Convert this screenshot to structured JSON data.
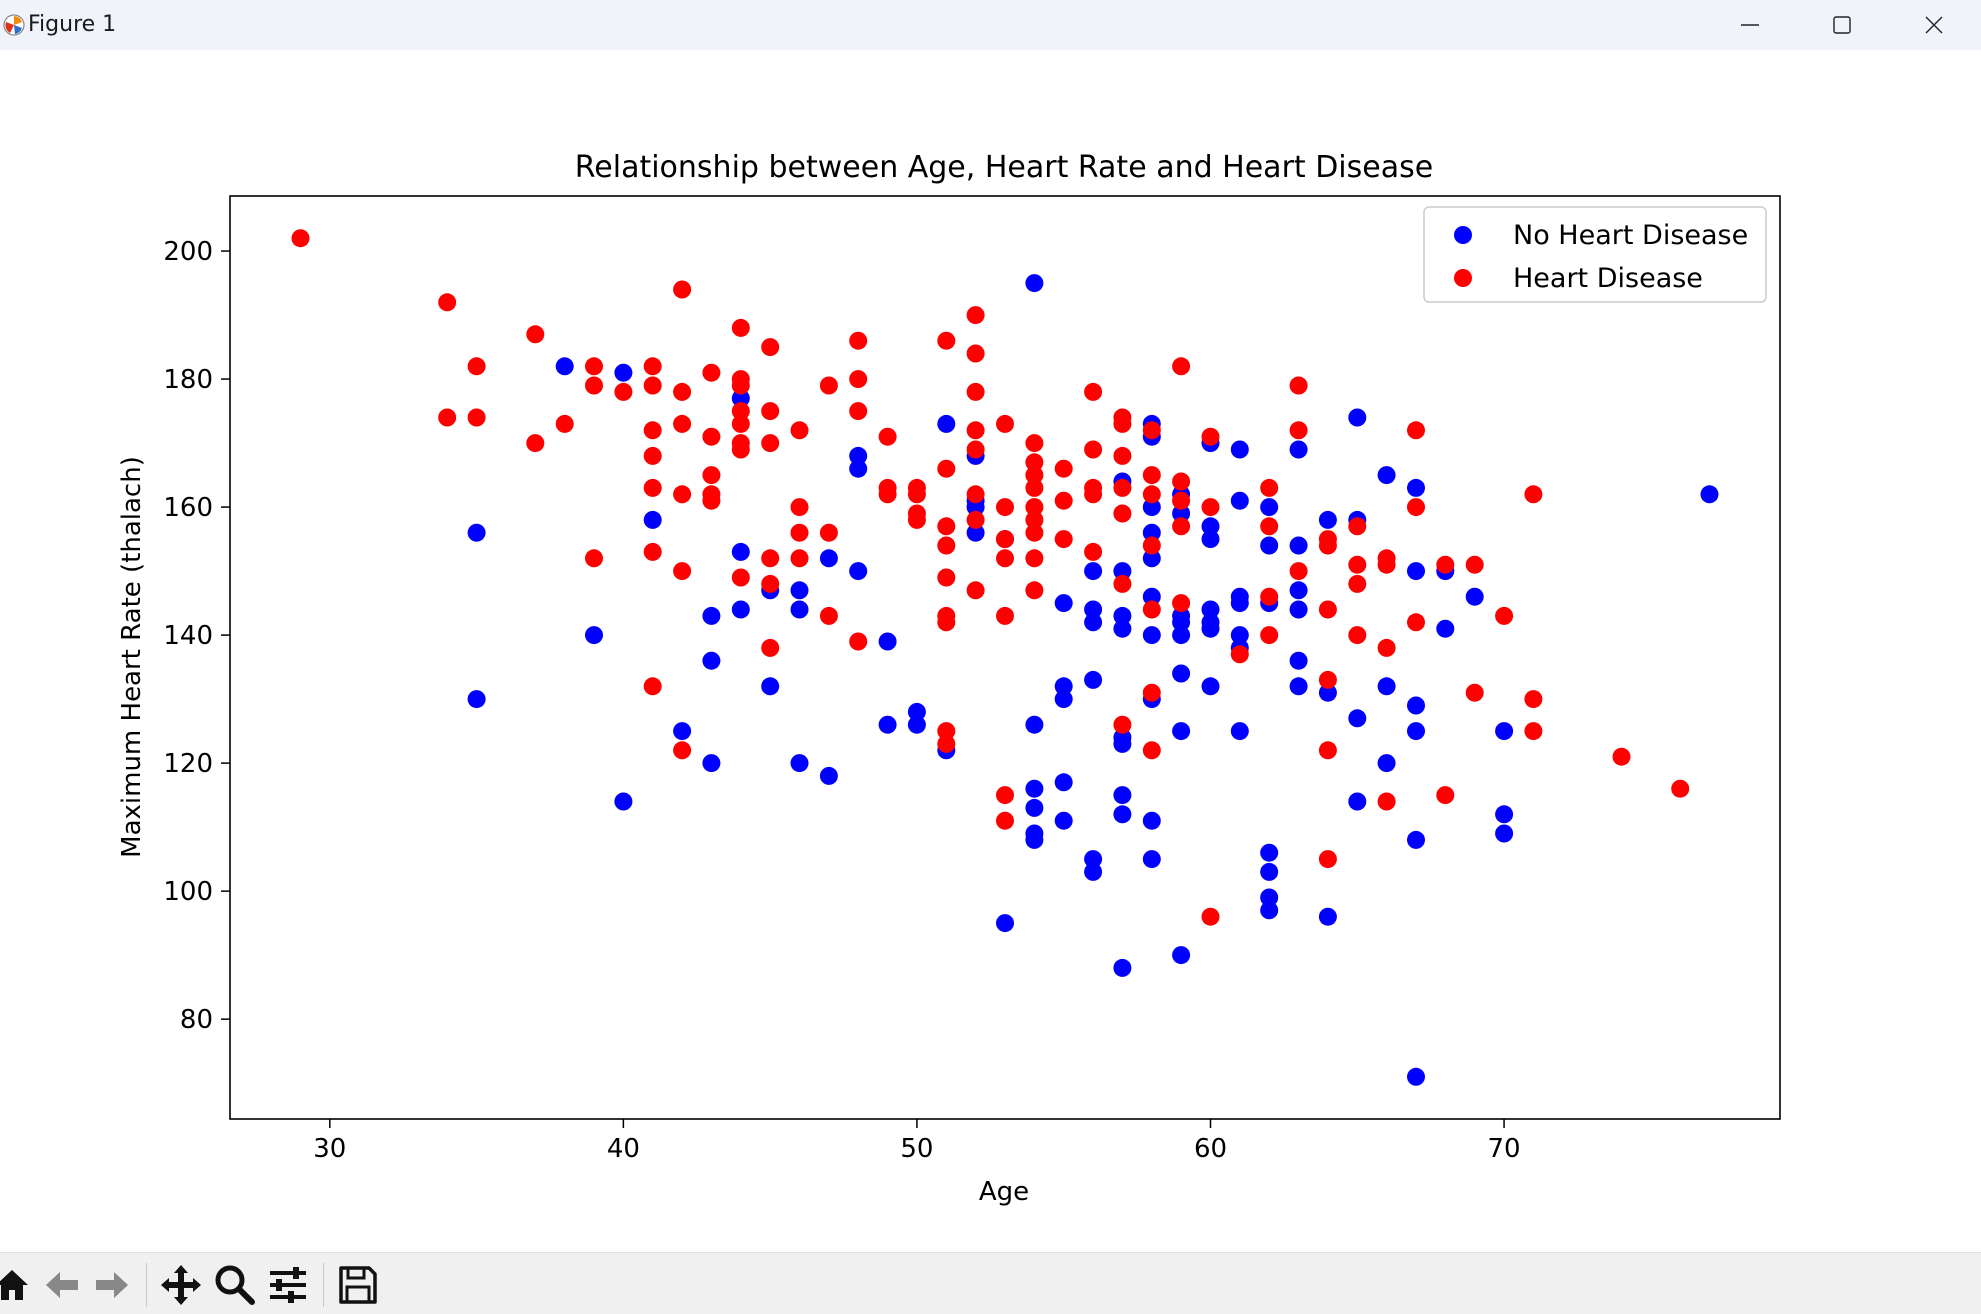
{
  "window": {
    "title": "Figure 1",
    "icons": [
      "app-icon",
      "minimize-icon",
      "maximize-icon",
      "close-icon"
    ]
  },
  "toolbar": {
    "buttons": [
      {
        "name": "home-button",
        "icon": "home-icon"
      },
      {
        "name": "back-button",
        "icon": "arrow-left-icon"
      },
      {
        "name": "forward-button",
        "icon": "arrow-right-icon"
      },
      {
        "name": "pan-button",
        "icon": "move-icon"
      },
      {
        "name": "zoom-button",
        "icon": "magnifier-icon"
      },
      {
        "name": "configure-subplots-button",
        "icon": "sliders-icon"
      },
      {
        "name": "save-button",
        "icon": "floppy-disk-icon"
      }
    ]
  },
  "chart_data": {
    "type": "scatter",
    "title": "Relationship between Age, Heart Rate and Heart Disease",
    "xlabel": "Age",
    "ylabel": "Maximum Heart Rate (thalach)",
    "xlim": [
      26.6,
      79.4
    ],
    "ylim": [
      64.4,
      208.6
    ],
    "xticks": [
      30,
      40,
      50,
      60,
      70
    ],
    "yticks": [
      80,
      100,
      120,
      140,
      160,
      180,
      200
    ],
    "grid": false,
    "legend_position": "upper right",
    "series": [
      {
        "name": "No Heart Disease",
        "color": "#0000ff",
        "points": [
          [
            35,
            156
          ],
          [
            35,
            130
          ],
          [
            38,
            182
          ],
          [
            39,
            140
          ],
          [
            40,
            181
          ],
          [
            40,
            114
          ],
          [
            41,
            158
          ],
          [
            42,
            125
          ],
          [
            43,
            143
          ],
          [
            43,
            136
          ],
          [
            43,
            120
          ],
          [
            44,
            177
          ],
          [
            44,
            153
          ],
          [
            44,
            144
          ],
          [
            45,
            147
          ],
          [
            45,
            132
          ],
          [
            46,
            147
          ],
          [
            46,
            144
          ],
          [
            46,
            120
          ],
          [
            47,
            152
          ],
          [
            47,
            118
          ],
          [
            48,
            168
          ],
          [
            48,
            166
          ],
          [
            48,
            150
          ],
          [
            49,
            139
          ],
          [
            49,
            126
          ],
          [
            50,
            128
          ],
          [
            50,
            126
          ],
          [
            51,
            173
          ],
          [
            51,
            122
          ],
          [
            52,
            168
          ],
          [
            52,
            161
          ],
          [
            52,
            160
          ],
          [
            52,
            156
          ],
          [
            53,
            155
          ],
          [
            53,
            95
          ],
          [
            54,
            195
          ],
          [
            54,
            126
          ],
          [
            54,
            116
          ],
          [
            54,
            113
          ],
          [
            54,
            109
          ],
          [
            54,
            108
          ],
          [
            55,
            145
          ],
          [
            55,
            132
          ],
          [
            55,
            130
          ],
          [
            55,
            117
          ],
          [
            55,
            111
          ],
          [
            56,
            150
          ],
          [
            56,
            144
          ],
          [
            56,
            142
          ],
          [
            56,
            133
          ],
          [
            56,
            105
          ],
          [
            56,
            103
          ],
          [
            57,
            164
          ],
          [
            57,
            150
          ],
          [
            57,
            143
          ],
          [
            57,
            141
          ],
          [
            57,
            124
          ],
          [
            57,
            123
          ],
          [
            57,
            115
          ],
          [
            57,
            112
          ],
          [
            57,
            88
          ],
          [
            58,
            173
          ],
          [
            58,
            171
          ],
          [
            58,
            160
          ],
          [
            58,
            156
          ],
          [
            58,
            152
          ],
          [
            58,
            146
          ],
          [
            58,
            140
          ],
          [
            58,
            130
          ],
          [
            58,
            111
          ],
          [
            58,
            105
          ],
          [
            59,
            162
          ],
          [
            59,
            159
          ],
          [
            59,
            143
          ],
          [
            59,
            142
          ],
          [
            59,
            140
          ],
          [
            59,
            134
          ],
          [
            59,
            125
          ],
          [
            59,
            90
          ],
          [
            60,
            170
          ],
          [
            60,
            157
          ],
          [
            60,
            155
          ],
          [
            60,
            144
          ],
          [
            60,
            142
          ],
          [
            60,
            141
          ],
          [
            60,
            132
          ],
          [
            61,
            169
          ],
          [
            61,
            161
          ],
          [
            61,
            146
          ],
          [
            61,
            145
          ],
          [
            61,
            140
          ],
          [
            61,
            138
          ],
          [
            61,
            125
          ],
          [
            62,
            160
          ],
          [
            62,
            154
          ],
          [
            62,
            145
          ],
          [
            62,
            106
          ],
          [
            62,
            103
          ],
          [
            62,
            99
          ],
          [
            62,
            97
          ],
          [
            63,
            169
          ],
          [
            63,
            154
          ],
          [
            63,
            147
          ],
          [
            63,
            144
          ],
          [
            63,
            136
          ],
          [
            63,
            132
          ],
          [
            64,
            158
          ],
          [
            64,
            131
          ],
          [
            64,
            96
          ],
          [
            65,
            174
          ],
          [
            65,
            158
          ],
          [
            65,
            127
          ],
          [
            65,
            114
          ],
          [
            66,
            165
          ],
          [
            66,
            132
          ],
          [
            66,
            120
          ],
          [
            67,
            163
          ],
          [
            67,
            150
          ],
          [
            67,
            129
          ],
          [
            67,
            125
          ],
          [
            67,
            108
          ],
          [
            67,
            71
          ],
          [
            68,
            150
          ],
          [
            68,
            141
          ],
          [
            69,
            146
          ],
          [
            70,
            125
          ],
          [
            70,
            112
          ],
          [
            70,
            109
          ],
          [
            77,
            162
          ]
        ]
      },
      {
        "name": "Heart Disease",
        "color": "#ff0000",
        "points": [
          [
            29,
            202
          ],
          [
            34,
            192
          ],
          [
            34,
            174
          ],
          [
            35,
            182
          ],
          [
            35,
            174
          ],
          [
            37,
            187
          ],
          [
            37,
            170
          ],
          [
            38,
            173
          ],
          [
            39,
            182
          ],
          [
            39,
            179
          ],
          [
            39,
            152
          ],
          [
            40,
            178
          ],
          [
            41,
            182
          ],
          [
            41,
            179
          ],
          [
            41,
            172
          ],
          [
            41,
            168
          ],
          [
            41,
            163
          ],
          [
            41,
            153
          ],
          [
            41,
            132
          ],
          [
            42,
            194
          ],
          [
            42,
            178
          ],
          [
            42,
            173
          ],
          [
            42,
            162
          ],
          [
            42,
            150
          ],
          [
            42,
            122
          ],
          [
            43,
            181
          ],
          [
            43,
            171
          ],
          [
            43,
            165
          ],
          [
            43,
            162
          ],
          [
            43,
            161
          ],
          [
            44,
            188
          ],
          [
            44,
            180
          ],
          [
            44,
            179
          ],
          [
            44,
            175
          ],
          [
            44,
            173
          ],
          [
            44,
            170
          ],
          [
            44,
            169
          ],
          [
            44,
            149
          ],
          [
            45,
            185
          ],
          [
            45,
            175
          ],
          [
            45,
            170
          ],
          [
            45,
            152
          ],
          [
            45,
            148
          ],
          [
            45,
            138
          ],
          [
            46,
            172
          ],
          [
            46,
            160
          ],
          [
            46,
            156
          ],
          [
            46,
            152
          ],
          [
            47,
            179
          ],
          [
            47,
            156
          ],
          [
            47,
            143
          ],
          [
            48,
            186
          ],
          [
            48,
            180
          ],
          [
            48,
            175
          ],
          [
            48,
            139
          ],
          [
            49,
            171
          ],
          [
            49,
            163
          ],
          [
            49,
            162
          ],
          [
            50,
            163
          ],
          [
            50,
            162
          ],
          [
            50,
            159
          ],
          [
            50,
            158
          ],
          [
            51,
            186
          ],
          [
            51,
            166
          ],
          [
            51,
            157
          ],
          [
            51,
            154
          ],
          [
            51,
            149
          ],
          [
            51,
            143
          ],
          [
            51,
            142
          ],
          [
            51,
            125
          ],
          [
            51,
            123
          ],
          [
            52,
            190
          ],
          [
            52,
            184
          ],
          [
            52,
            178
          ],
          [
            52,
            172
          ],
          [
            52,
            169
          ],
          [
            52,
            162
          ],
          [
            52,
            158
          ],
          [
            52,
            147
          ],
          [
            53,
            173
          ],
          [
            53,
            160
          ],
          [
            53,
            155
          ],
          [
            53,
            152
          ],
          [
            53,
            143
          ],
          [
            53,
            115
          ],
          [
            53,
            111
          ],
          [
            54,
            170
          ],
          [
            54,
            167
          ],
          [
            54,
            165
          ],
          [
            54,
            163
          ],
          [
            54,
            160
          ],
          [
            54,
            158
          ],
          [
            54,
            156
          ],
          [
            54,
            152
          ],
          [
            54,
            147
          ],
          [
            55,
            166
          ],
          [
            55,
            161
          ],
          [
            55,
            155
          ],
          [
            56,
            178
          ],
          [
            56,
            169
          ],
          [
            56,
            163
          ],
          [
            56,
            162
          ],
          [
            56,
            153
          ],
          [
            57,
            174
          ],
          [
            57,
            173
          ],
          [
            57,
            168
          ],
          [
            57,
            163
          ],
          [
            57,
            159
          ],
          [
            57,
            148
          ],
          [
            57,
            126
          ],
          [
            58,
            172
          ],
          [
            58,
            165
          ],
          [
            58,
            162
          ],
          [
            58,
            154
          ],
          [
            58,
            144
          ],
          [
            58,
            131
          ],
          [
            58,
            122
          ],
          [
            59,
            182
          ],
          [
            59,
            164
          ],
          [
            59,
            161
          ],
          [
            59,
            157
          ],
          [
            59,
            145
          ],
          [
            60,
            171
          ],
          [
            60,
            160
          ],
          [
            60,
            96
          ],
          [
            61,
            137
          ],
          [
            62,
            163
          ],
          [
            62,
            157
          ],
          [
            62,
            146
          ],
          [
            62,
            140
          ],
          [
            63,
            179
          ],
          [
            63,
            172
          ],
          [
            63,
            150
          ],
          [
            64,
            155
          ],
          [
            64,
            154
          ],
          [
            64,
            144
          ],
          [
            64,
            133
          ],
          [
            64,
            122
          ],
          [
            64,
            105
          ],
          [
            65,
            157
          ],
          [
            65,
            151
          ],
          [
            65,
            148
          ],
          [
            65,
            140
          ],
          [
            66,
            152
          ],
          [
            66,
            151
          ],
          [
            66,
            138
          ],
          [
            66,
            114
          ],
          [
            67,
            172
          ],
          [
            67,
            160
          ],
          [
            67,
            142
          ],
          [
            68,
            151
          ],
          [
            68,
            115
          ],
          [
            69,
            151
          ],
          [
            69,
            131
          ],
          [
            70,
            143
          ],
          [
            71,
            162
          ],
          [
            71,
            130
          ],
          [
            71,
            125
          ],
          [
            74,
            121
          ],
          [
            76,
            116
          ]
        ]
      }
    ]
  }
}
